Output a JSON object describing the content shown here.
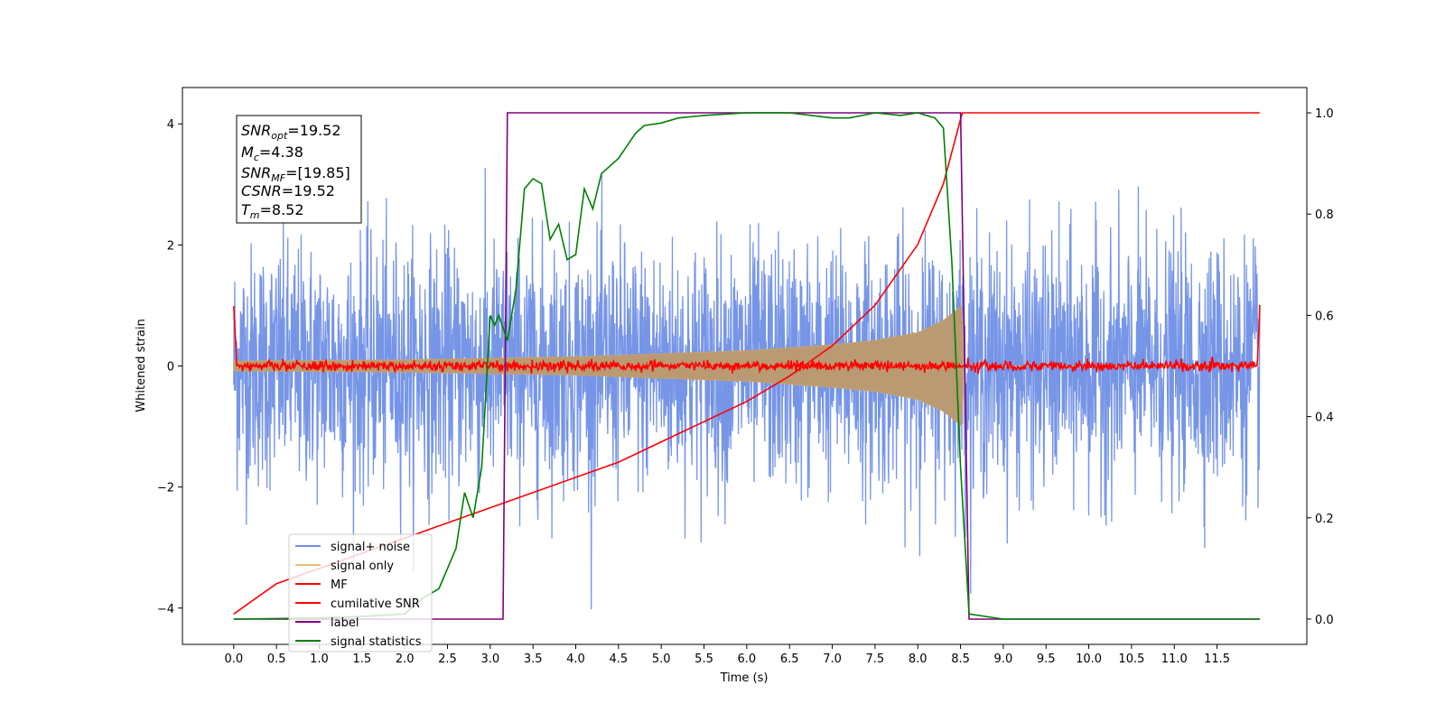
{
  "chart_data": {
    "type": "line",
    "xlabel": "Time (s)",
    "ylabel": "Whitened strain",
    "xlim": [
      -0.6,
      12.55
    ],
    "ylim": [
      -4.6,
      4.6
    ],
    "y2lim": [
      -0.05,
      1.05
    ],
    "x_ticks": [
      "0.0",
      "0.5",
      "1.0",
      "1.5",
      "2.0",
      "2.5",
      "3.0",
      "3.5",
      "4.0",
      "4.5",
      "5.0",
      "5.5",
      "6.0",
      "6.5",
      "7.0",
      "7.5",
      "8.0",
      "8.5",
      "9.0",
      "9.5",
      "10.0",
      "10.5",
      "11.0",
      "11.5"
    ],
    "y_ticks": [
      "4",
      "2",
      "0",
      "−2",
      "−4"
    ],
    "y2_ticks": [
      "1.0",
      "0.8",
      "0.6",
      "0.4",
      "0.2",
      "0.0"
    ],
    "grid": false,
    "legend_position": "lower-left",
    "info_box": {
      "snr_opt": {
        "base": "SNR",
        "sub": "opt",
        "value": "=19.52"
      },
      "mc": {
        "base": "M",
        "sub": "c",
        "value": "=4.38"
      },
      "snr_mf": {
        "base": "SNR",
        "sub": "MF",
        "value": "=[19.85]"
      },
      "csnr": {
        "base": "CSNR",
        "sub": "",
        "value": "=19.52"
      },
      "tm": {
        "base": "T",
        "sub": "m",
        "value": "=8.52"
      }
    },
    "series": [
      {
        "name": "signal+ noise",
        "color": "#6f8fe6",
        "axis": "left",
        "description_values": {
          "t_start": 0.0,
          "t_end": 12.0,
          "noise_std": 1.0,
          "max_abs": 4.15
        }
      },
      {
        "name": "signal only",
        "color": "#ebc072",
        "axis": "left",
        "envelope": [
          [
            0.0,
            0.08
          ],
          [
            2.0,
            0.1
          ],
          [
            4.0,
            0.15
          ],
          [
            6.0,
            0.25
          ],
          [
            7.0,
            0.35
          ],
          [
            7.5,
            0.42
          ],
          [
            8.0,
            0.55
          ],
          [
            8.3,
            0.75
          ],
          [
            8.52,
            1.0
          ],
          [
            8.54,
            0.0
          ],
          [
            12.0,
            0.0
          ]
        ]
      },
      {
        "name": "MF",
        "color": "#ff0000",
        "axis": "left",
        "points": [
          [
            0.0,
            1.0
          ],
          [
            0.03,
            0.2
          ],
          [
            6.0,
            0.0
          ],
          [
            11.97,
            0.1
          ],
          [
            12.0,
            0.95
          ]
        ],
        "noise_std": 0.04
      },
      {
        "name": "cumilative SNR",
        "color": "#ff0000",
        "axis": "right",
        "points": [
          [
            0.0,
            0.01
          ],
          [
            0.5,
            0.07
          ],
          [
            1.0,
            0.1
          ],
          [
            1.5,
            0.13
          ],
          [
            2.0,
            0.16
          ],
          [
            2.5,
            0.19
          ],
          [
            3.0,
            0.22
          ],
          [
            3.5,
            0.25
          ],
          [
            4.0,
            0.28
          ],
          [
            4.5,
            0.31
          ],
          [
            5.0,
            0.35
          ],
          [
            5.5,
            0.39
          ],
          [
            6.0,
            0.43
          ],
          [
            6.5,
            0.48
          ],
          [
            7.0,
            0.54
          ],
          [
            7.5,
            0.62
          ],
          [
            8.0,
            0.74
          ],
          [
            8.3,
            0.86
          ],
          [
            8.52,
            1.0
          ],
          [
            12.0,
            1.0
          ]
        ]
      },
      {
        "name": "label",
        "color": "#800080",
        "axis": "right",
        "points": [
          [
            0.0,
            0.0
          ],
          [
            3.15,
            0.0
          ],
          [
            3.2,
            1.0
          ],
          [
            8.5,
            1.0
          ],
          [
            8.6,
            0.0
          ],
          [
            12.0,
            0.0
          ]
        ]
      },
      {
        "name": "signal statistics",
        "color": "#008000",
        "axis": "right",
        "points": [
          [
            0.0,
            0.0
          ],
          [
            1.0,
            0.002
          ],
          [
            1.5,
            0.005
          ],
          [
            2.0,
            0.01
          ],
          [
            2.2,
            0.04
          ],
          [
            2.4,
            0.06
          ],
          [
            2.5,
            0.1
          ],
          [
            2.6,
            0.14
          ],
          [
            2.7,
            0.25
          ],
          [
            2.8,
            0.2
          ],
          [
            2.9,
            0.3
          ],
          [
            3.0,
            0.6
          ],
          [
            3.05,
            0.58
          ],
          [
            3.1,
            0.6
          ],
          [
            3.2,
            0.55
          ],
          [
            3.3,
            0.65
          ],
          [
            3.4,
            0.85
          ],
          [
            3.5,
            0.87
          ],
          [
            3.6,
            0.86
          ],
          [
            3.7,
            0.75
          ],
          [
            3.8,
            0.78
          ],
          [
            3.9,
            0.71
          ],
          [
            4.0,
            0.72
          ],
          [
            4.1,
            0.85
          ],
          [
            4.2,
            0.81
          ],
          [
            4.3,
            0.88
          ],
          [
            4.5,
            0.91
          ],
          [
            4.7,
            0.96
          ],
          [
            4.8,
            0.975
          ],
          [
            5.0,
            0.98
          ],
          [
            5.2,
            0.99
          ],
          [
            5.5,
            0.995
          ],
          [
            6.0,
            1.0
          ],
          [
            6.5,
            1.0
          ],
          [
            7.0,
            0.99
          ],
          [
            7.2,
            0.99
          ],
          [
            7.5,
            1.0
          ],
          [
            7.8,
            0.995
          ],
          [
            8.0,
            1.0
          ],
          [
            8.2,
            0.99
          ],
          [
            8.3,
            0.97
          ],
          [
            8.4,
            0.7
          ],
          [
            8.5,
            0.3
          ],
          [
            8.6,
            0.01
          ],
          [
            9.0,
            0.0
          ],
          [
            12.0,
            0.0
          ]
        ]
      }
    ]
  }
}
